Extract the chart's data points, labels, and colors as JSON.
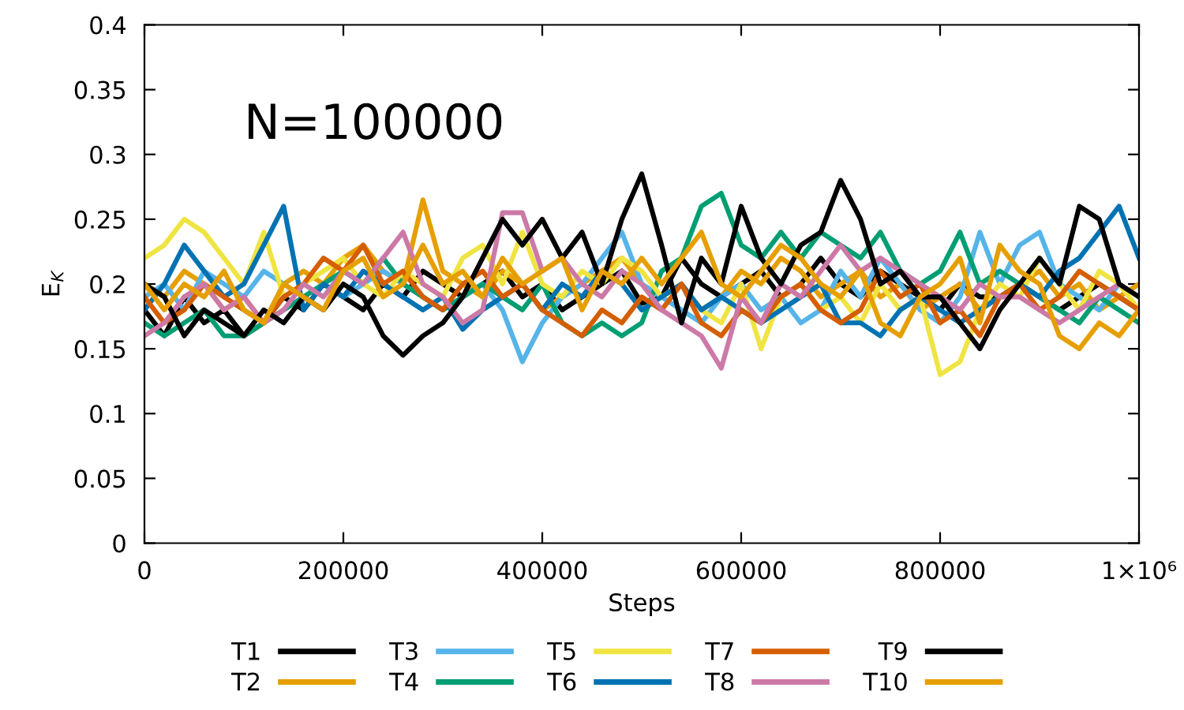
{
  "chart_data": {
    "type": "line",
    "xlabel": "Steps",
    "ylabel": "E$_{K}$",
    "annotations": [
      "N=100000"
    ],
    "x": [
      0,
      20000,
      40000,
      60000,
      80000,
      100000,
      120000,
      140000,
      160000,
      180000,
      200000,
      220000,
      240000,
      260000,
      280000,
      300000,
      320000,
      340000,
      360000,
      380000,
      400000,
      420000,
      440000,
      460000,
      480000,
      500000,
      520000,
      540000,
      560000,
      580000,
      600000,
      620000,
      640000,
      660000,
      680000,
      700000,
      720000,
      740000,
      760000,
      780000,
      800000,
      820000,
      840000,
      860000,
      880000,
      900000,
      920000,
      940000,
      960000,
      980000,
      1000000
    ],
    "series": [
      {
        "name": "T1",
        "color": "#000000",
        "values": [
          0.18,
          0.16,
          0.19,
          0.17,
          0.18,
          0.16,
          0.17,
          0.19,
          0.18,
          0.2,
          0.19,
          0.18,
          0.2,
          0.19,
          0.21,
          0.2,
          0.19,
          0.2,
          0.21,
          0.19,
          0.2,
          0.18,
          0.19,
          0.2,
          0.21,
          0.185,
          0.19,
          0.22,
          0.2,
          0.19,
          0.2,
          0.21,
          0.19,
          0.2,
          0.22,
          0.2,
          0.19,
          0.21,
          0.2,
          0.19,
          0.18,
          0.2,
          0.19,
          0.19,
          0.2,
          0.19,
          0.18,
          0.19,
          0.2,
          0.19,
          0.18
        ]
      },
      {
        "name": "T2",
        "color": "#e69f00",
        "values": [
          0.2,
          0.19,
          0.21,
          0.2,
          0.18,
          0.19,
          0.17,
          0.2,
          0.21,
          0.2,
          0.22,
          0.23,
          0.21,
          0.2,
          0.265,
          0.21,
          0.2,
          0.19,
          0.21,
          0.2,
          0.18,
          0.19,
          0.2,
          0.21,
          0.22,
          0.2,
          0.19,
          0.2,
          0.18,
          0.19,
          0.21,
          0.2,
          0.22,
          0.21,
          0.19,
          0.2,
          0.21,
          0.19,
          0.2,
          0.18,
          0.19,
          0.2,
          0.18,
          0.19,
          0.2,
          0.21,
          0.19,
          0.2,
          0.18,
          0.19,
          0.2
        ]
      },
      {
        "name": "T3",
        "color": "#56b4e9",
        "values": [
          0.19,
          0.2,
          0.18,
          0.21,
          0.2,
          0.19,
          0.21,
          0.2,
          0.19,
          0.2,
          0.19,
          0.2,
          0.21,
          0.2,
          0.19,
          0.18,
          0.19,
          0.2,
          0.18,
          0.14,
          0.17,
          0.19,
          0.2,
          0.22,
          0.24,
          0.2,
          0.19,
          0.18,
          0.17,
          0.19,
          0.2,
          0.18,
          0.19,
          0.17,
          0.18,
          0.21,
          0.19,
          0.22,
          0.2,
          0.18,
          0.17,
          0.19,
          0.24,
          0.2,
          0.23,
          0.24,
          0.2,
          0.19,
          0.18,
          0.2,
          0.19
        ]
      },
      {
        "name": "T4",
        "color": "#009e73",
        "values": [
          0.17,
          0.16,
          0.17,
          0.18,
          0.16,
          0.16,
          0.17,
          0.18,
          0.19,
          0.2,
          0.21,
          0.2,
          0.22,
          0.2,
          0.19,
          0.18,
          0.19,
          0.2,
          0.19,
          0.18,
          0.2,
          0.17,
          0.16,
          0.17,
          0.16,
          0.17,
          0.21,
          0.22,
          0.26,
          0.27,
          0.23,
          0.22,
          0.24,
          0.22,
          0.24,
          0.23,
          0.22,
          0.24,
          0.21,
          0.2,
          0.21,
          0.24,
          0.2,
          0.21,
          0.2,
          0.19,
          0.18,
          0.17,
          0.19,
          0.18,
          0.17
        ]
      },
      {
        "name": "T5",
        "color": "#f0e442",
        "values": [
          0.22,
          0.23,
          0.25,
          0.24,
          0.22,
          0.2,
          0.24,
          0.19,
          0.2,
          0.21,
          0.22,
          0.2,
          0.19,
          0.21,
          0.2,
          0.19,
          0.22,
          0.23,
          0.2,
          0.24,
          0.2,
          0.19,
          0.21,
          0.2,
          0.22,
          0.21,
          0.19,
          0.2,
          0.18,
          0.17,
          0.2,
          0.15,
          0.19,
          0.2,
          0.18,
          0.19,
          0.17,
          0.2,
          0.18,
          0.19,
          0.13,
          0.14,
          0.18,
          0.2,
          0.19,
          0.22,
          0.2,
          0.18,
          0.21,
          0.2,
          0.18
        ]
      },
      {
        "name": "T6",
        "color": "#0072b2",
        "values": [
          0.18,
          0.2,
          0.23,
          0.21,
          0.19,
          0.2,
          0.23,
          0.26,
          0.18,
          0.2,
          0.19,
          0.21,
          0.2,
          0.19,
          0.18,
          0.19,
          0.165,
          0.18,
          0.19,
          0.2,
          0.18,
          0.2,
          0.19,
          0.21,
          0.2,
          0.18,
          0.19,
          0.2,
          0.18,
          0.19,
          0.18,
          0.17,
          0.18,
          0.19,
          0.2,
          0.17,
          0.17,
          0.16,
          0.18,
          0.19,
          0.18,
          0.17,
          0.18,
          0.19,
          0.2,
          0.19,
          0.21,
          0.22,
          0.24,
          0.26,
          0.22
        ]
      },
      {
        "name": "T7",
        "color": "#d55e00",
        "values": [
          0.19,
          0.17,
          0.18,
          0.2,
          0.19,
          0.18,
          0.17,
          0.19,
          0.2,
          0.22,
          0.21,
          0.23,
          0.2,
          0.21,
          0.19,
          0.18,
          0.2,
          0.21,
          0.19,
          0.2,
          0.18,
          0.17,
          0.16,
          0.18,
          0.17,
          0.19,
          0.18,
          0.2,
          0.17,
          0.16,
          0.18,
          0.17,
          0.19,
          0.2,
          0.18,
          0.17,
          0.18,
          0.21,
          0.19,
          0.2,
          0.17,
          0.18,
          0.16,
          0.19,
          0.2,
          0.18,
          0.19,
          0.21,
          0.2,
          0.19,
          0.18
        ]
      },
      {
        "name": "T8",
        "color": "#cc79a7",
        "values": [
          0.16,
          0.17,
          0.19,
          0.2,
          0.18,
          0.19,
          0.17,
          0.18,
          0.2,
          0.19,
          0.21,
          0.2,
          0.22,
          0.24,
          0.2,
          0.19,
          0.17,
          0.18,
          0.255,
          0.255,
          0.21,
          0.22,
          0.2,
          0.19,
          0.21,
          0.2,
          0.18,
          0.17,
          0.16,
          0.135,
          0.19,
          0.17,
          0.2,
          0.19,
          0.21,
          0.23,
          0.21,
          0.22,
          0.21,
          0.2,
          0.19,
          0.18,
          0.2,
          0.19,
          0.19,
          0.18,
          0.17,
          0.18,
          0.19,
          0.2,
          0.19
        ]
      },
      {
        "name": "T9",
        "color": "#000000",
        "values": [
          0.2,
          0.19,
          0.16,
          0.18,
          0.17,
          0.16,
          0.18,
          0.17,
          0.19,
          0.18,
          0.2,
          0.19,
          0.16,
          0.145,
          0.16,
          0.17,
          0.19,
          0.22,
          0.25,
          0.23,
          0.25,
          0.22,
          0.24,
          0.2,
          0.25,
          0.285,
          0.23,
          0.17,
          0.22,
          0.2,
          0.26,
          0.22,
          0.2,
          0.23,
          0.24,
          0.28,
          0.25,
          0.2,
          0.21,
          0.19,
          0.19,
          0.17,
          0.15,
          0.18,
          0.2,
          0.22,
          0.2,
          0.26,
          0.25,
          0.2,
          0.19
        ]
      },
      {
        "name": "T10",
        "color": "#e69f00",
        "values": [
          0.2,
          0.18,
          0.2,
          0.19,
          0.21,
          0.18,
          0.17,
          0.2,
          0.19,
          0.18,
          0.21,
          0.22,
          0.19,
          0.2,
          0.23,
          0.2,
          0.21,
          0.19,
          0.22,
          0.2,
          0.21,
          0.22,
          0.18,
          0.21,
          0.2,
          0.22,
          0.2,
          0.22,
          0.24,
          0.2,
          0.19,
          0.21,
          0.23,
          0.22,
          0.2,
          0.19,
          0.21,
          0.17,
          0.16,
          0.19,
          0.2,
          0.22,
          0.17,
          0.23,
          0.21,
          0.2,
          0.16,
          0.15,
          0.17,
          0.16,
          0.18
        ]
      }
    ],
    "xlim": [
      0,
      1000000
    ],
    "ylim": [
      0,
      0.4
    ],
    "xticks": [
      0,
      200000,
      400000,
      600000,
      800000,
      {
        "value": 1000000,
        "label": "1×10⁶"
      }
    ],
    "yticks": [
      0,
      0.05,
      0.1,
      0.15,
      0.2,
      0.25,
      0.3,
      0.35,
      0.4
    ],
    "legend": "bottom",
    "marker": "none",
    "line_style": "solid"
  }
}
